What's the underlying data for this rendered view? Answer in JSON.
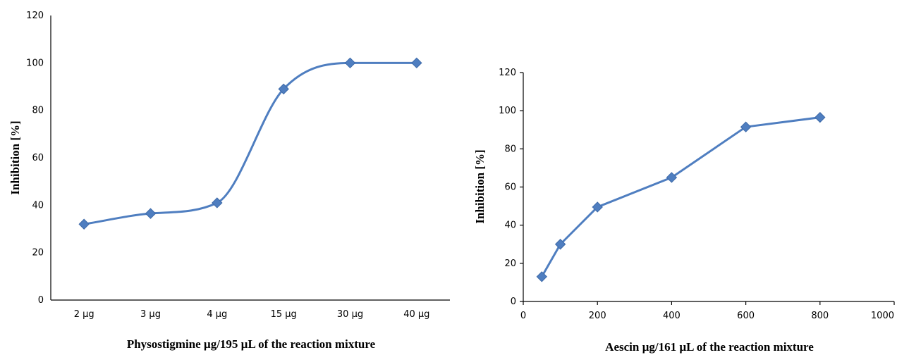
{
  "chart_data": [
    {
      "type": "line",
      "smooth": true,
      "categories": [
        "2 µg",
        "3 µg",
        "4 µg",
        "15 µg",
        "30 µg",
        "40 µg"
      ],
      "series": [
        {
          "values": [
            32,
            36.5,
            41,
            89,
            100,
            100
          ],
          "color": "#4f7ec0",
          "marker": "diamond"
        }
      ],
      "xlabel": "Physostigmine µg/195 µL of the reaction mixture",
      "ylabel": "Inhibition [%]",
      "ylim": [
        0,
        120
      ],
      "yticks": [
        "0",
        "20",
        "40",
        "60",
        "80",
        "100",
        "120"
      ],
      "grid": false
    },
    {
      "type": "line",
      "smooth": false,
      "x": [
        50,
        100,
        200,
        400,
        600,
        800
      ],
      "series": [
        {
          "values": [
            13,
            30,
            49.5,
            65,
            91.5,
            96.5
          ],
          "color": "#4f7ec0",
          "marker": "diamond"
        }
      ],
      "xlabel": "Aescin µg/161 µL of the reaction mixture",
      "ylabel": "Inhibition [%]",
      "xlim": [
        0,
        1000
      ],
      "xticks": [
        "0",
        "200",
        "400",
        "600",
        "800",
        "1000"
      ],
      "ylim": [
        0,
        120
      ],
      "yticks": [
        "0",
        "20",
        "40",
        "60",
        "80",
        "100",
        "120"
      ],
      "grid": false
    }
  ]
}
